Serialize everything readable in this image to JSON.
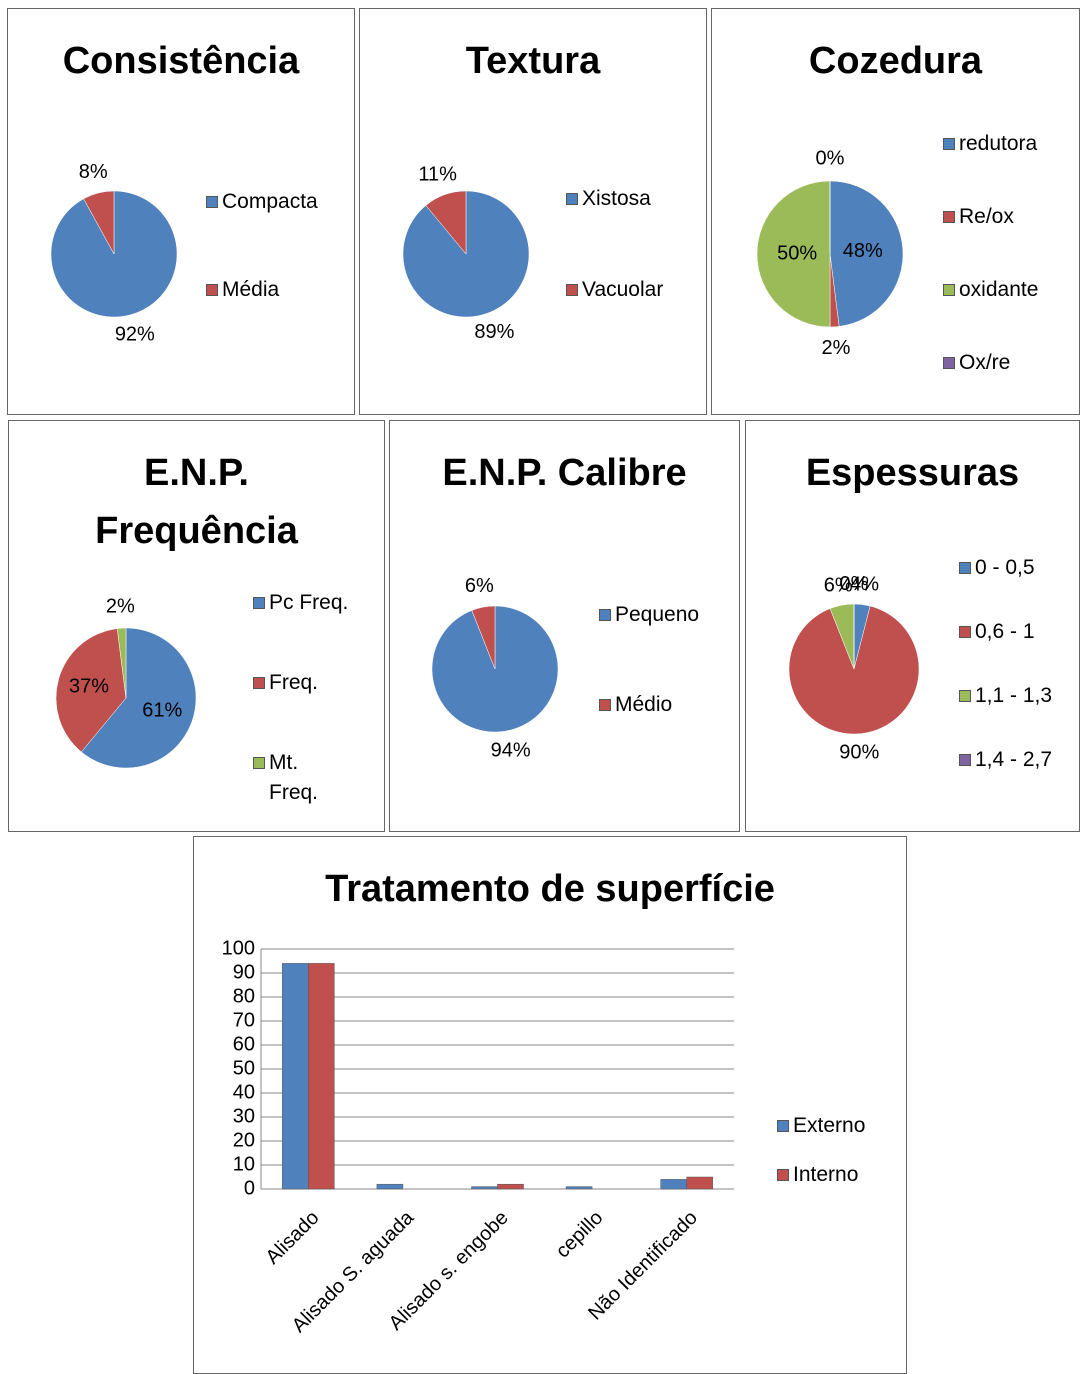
{
  "chart_data": [
    {
      "type": "pie",
      "title": "Consistência",
      "categories": [
        "Compacta",
        "Média"
      ],
      "values": [
        92,
        8
      ],
      "value_labels": [
        "92%",
        "8%"
      ],
      "colors": [
        "#4f81bd",
        "#c0504d"
      ]
    },
    {
      "type": "pie",
      "title": "Textura",
      "categories": [
        "Xistosa",
        "Vacuolar"
      ],
      "values": [
        89,
        11
      ],
      "value_labels": [
        "89%",
        "11%"
      ],
      "colors": [
        "#4f81bd",
        "#c0504d"
      ]
    },
    {
      "type": "pie",
      "title": "Cozedura",
      "categories": [
        "redutora",
        "Re/ox",
        "oxidante",
        "Ox/re"
      ],
      "values": [
        48,
        2,
        50,
        0
      ],
      "value_labels": [
        "48%",
        "2%",
        "50%",
        "0%"
      ],
      "colors": [
        "#4f81bd",
        "#c0504d",
        "#9bbb59",
        "#8064a2"
      ]
    },
    {
      "type": "pie",
      "title": "E.N.P. Frequência",
      "categories": [
        "Pc Freq.",
        "Freq.",
        "Mt. Freq."
      ],
      "values": [
        61,
        37,
        2
      ],
      "value_labels": [
        "61%",
        "37%",
        "2%"
      ],
      "colors": [
        "#4f81bd",
        "#c0504d",
        "#9bbb59"
      ]
    },
    {
      "type": "pie",
      "title": "E.N.P. Calibre",
      "categories": [
        "Pequeno",
        "Médio"
      ],
      "values": [
        94,
        6
      ],
      "value_labels": [
        "94%",
        "6%"
      ],
      "colors": [
        "#4f81bd",
        "#c0504d"
      ]
    },
    {
      "type": "pie",
      "title": "Espessuras",
      "categories": [
        "0 - 0,5",
        "0,6 - 1",
        "1,1 - 1,3",
        "1,4 - 2,7"
      ],
      "values": [
        4,
        90,
        6,
        0
      ],
      "value_labels": [
        "4%",
        "90%",
        "6%",
        "0%"
      ],
      "colors": [
        "#4f81bd",
        "#c0504d",
        "#9bbb59",
        "#8064a2"
      ]
    },
    {
      "type": "bar",
      "title": "Tratamento de superfície",
      "categories": [
        "Alisado",
        "Alisado S. aguada",
        "Alisado s. engobe",
        "cepillo",
        "Não Identificado"
      ],
      "series": [
        {
          "name": "Externo",
          "color": "#4f81bd",
          "values": [
            94,
            2,
            1,
            1,
            4
          ]
        },
        {
          "name": "Interno",
          "color": "#c0504d",
          "values": [
            94,
            0,
            2,
            0,
            5
          ]
        }
      ],
      "ylim": [
        0,
        100
      ],
      "yticks": [
        0,
        10,
        20,
        30,
        40,
        50,
        60,
        70,
        80,
        90,
        100
      ],
      "grid": true
    }
  ]
}
